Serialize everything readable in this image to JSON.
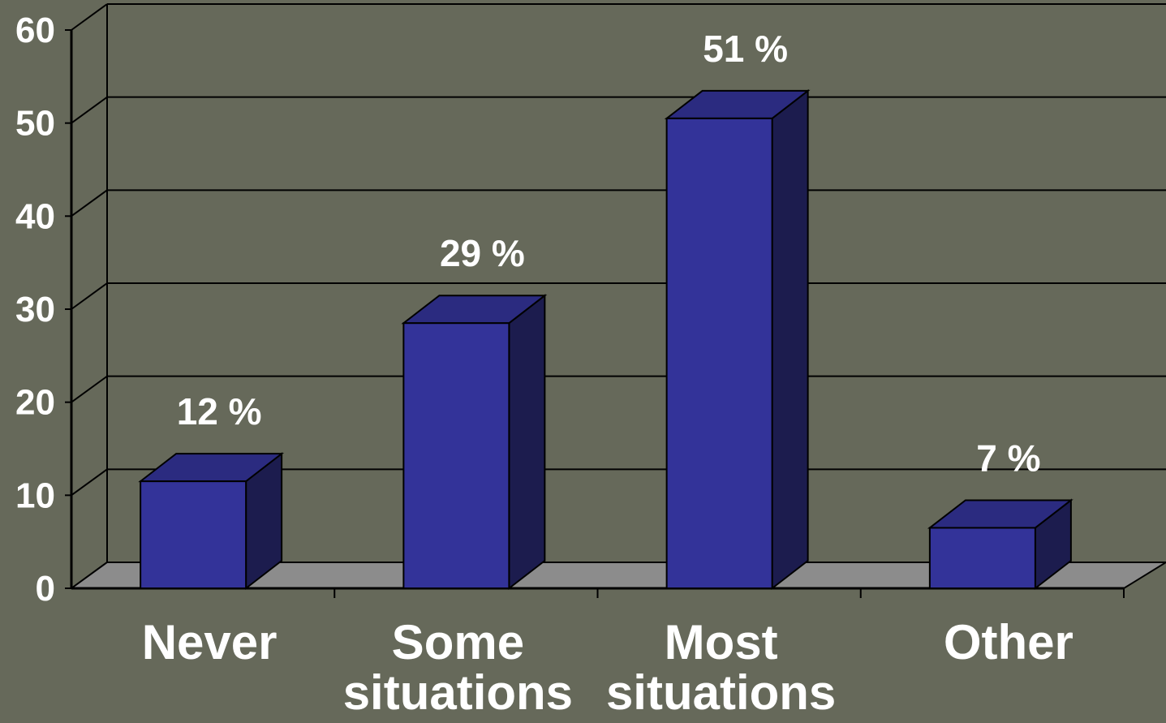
{
  "chart_data": {
    "type": "bar",
    "categories": [
      [
        "Never"
      ],
      [
        "Some",
        "situations"
      ],
      [
        "Most",
        "situations"
      ],
      [
        "Other"
      ]
    ],
    "values": [
      11.5,
      28.5,
      50.5,
      6.5
    ],
    "data_labels": [
      "12 %",
      "29 %",
      "51 %",
      "7 %"
    ],
    "y_ticks": [
      "0",
      "10",
      "20",
      "30",
      "40",
      "50",
      "60"
    ],
    "ylim": [
      0,
      60
    ],
    "grid": true,
    "legend": "none",
    "colors": {
      "background": "#66695a",
      "bar_front": "#333399",
      "bar_side": "#1c1c4e",
      "bar_top": "#2b2b80",
      "floor": "#8c8c8c",
      "text": "#ffffff"
    }
  }
}
